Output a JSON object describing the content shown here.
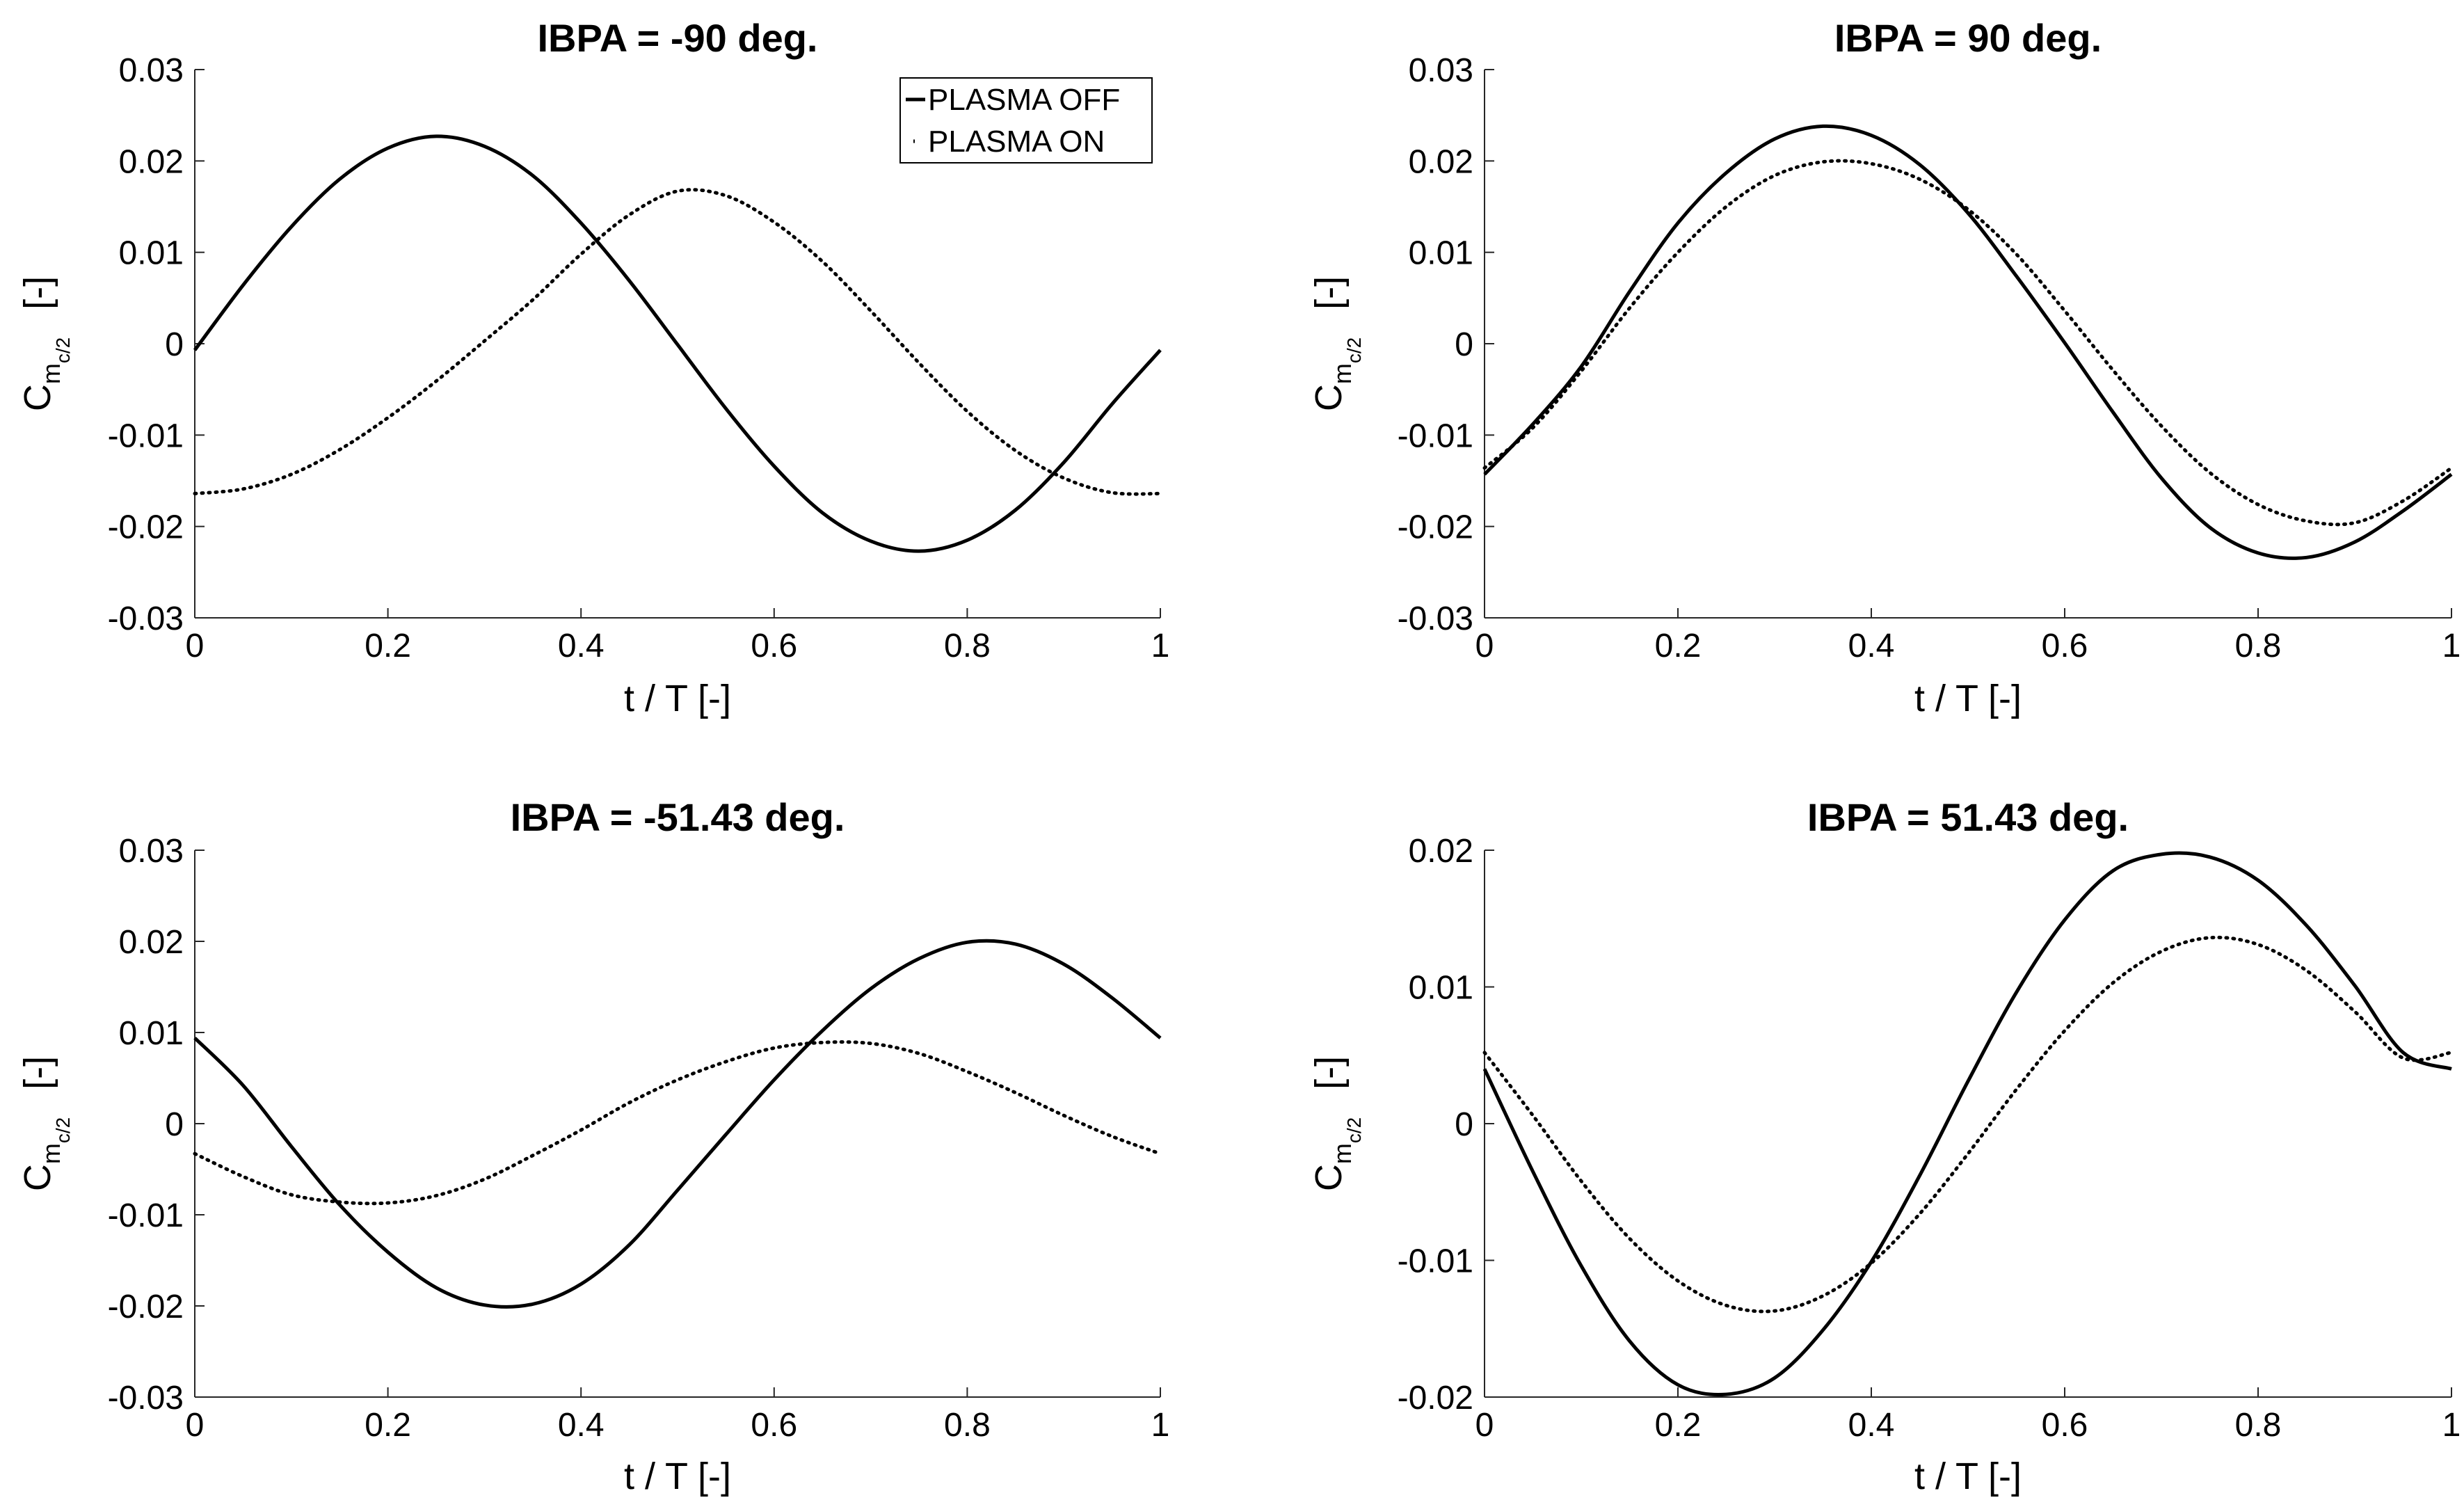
{
  "chart_data": [
    {
      "type": "line",
      "title": "IBPA = -90 deg.",
      "xlabel": "t / T  [-]",
      "ylabel_main": "C",
      "ylabel_sub": "m",
      "ylabel_subsub": "c/2",
      "ylabel_unit": "[-]",
      "xlim": [
        0,
        1
      ],
      "ylim": [
        -0.03,
        0.03
      ],
      "xticks": [
        0,
        0.2,
        0.4,
        0.6,
        0.8,
        1
      ],
      "xtick_labels": [
        "0",
        "0.2",
        "0.4",
        "0.6",
        "0.8",
        "1"
      ],
      "yticks": [
        -0.03,
        -0.02,
        -0.01,
        0,
        0.01,
        0.02,
        0.03
      ],
      "ytick_labels": [
        "-0.03",
        "-0.02",
        "-0.01",
        "0",
        "0.01",
        "0.02",
        "0.03"
      ],
      "grid": false,
      "legend_position": "top-right",
      "series": [
        {
          "name": "PLASMA OFF",
          "style": "solid",
          "x": [
            0,
            0.05,
            0.1,
            0.15,
            0.2,
            0.25,
            0.3,
            0.35,
            0.4,
            0.45,
            0.5,
            0.55,
            0.6,
            0.65,
            0.7,
            0.75,
            0.8,
            0.85,
            0.9,
            0.95,
            1
          ],
          "values": [
            -0.0007,
            0.0064,
            0.0128,
            0.018,
            0.0214,
            0.0227,
            0.0216,
            0.0184,
            0.0132,
            0.0069,
            -0.0001,
            -0.0071,
            -0.0134,
            -0.0185,
            -0.0216,
            -0.0227,
            -0.0215,
            -0.0182,
            -0.013,
            -0.0066,
            -0.0007
          ]
        },
        {
          "name": "PLASMA ON",
          "style": "dotted",
          "x": [
            0,
            0.05,
            0.1,
            0.15,
            0.2,
            0.25,
            0.3,
            0.35,
            0.4,
            0.45,
            0.5,
            0.55,
            0.6,
            0.65,
            0.7,
            0.75,
            0.8,
            0.85,
            0.9,
            0.95,
            1
          ],
          "values": [
            -0.0164,
            -0.0159,
            -0.0143,
            -0.0116,
            -0.0081,
            -0.0041,
            0.0003,
            0.0048,
            0.0098,
            0.0141,
            0.0167,
            0.0162,
            0.0133,
            0.009,
            0.0036,
            -0.0021,
            -0.0074,
            -0.0117,
            -0.0147,
            -0.0163,
            -0.0164
          ]
        }
      ]
    },
    {
      "type": "line",
      "title": "IBPA = 90 deg.",
      "xlabel": "t / T  [-]",
      "ylabel_main": "C",
      "ylabel_sub": "m",
      "ylabel_subsub": "c/2",
      "ylabel_unit": "[-]",
      "xlim": [
        0,
        1
      ],
      "ylim": [
        -0.03,
        0.03
      ],
      "xticks": [
        0,
        0.2,
        0.4,
        0.6,
        0.8,
        1
      ],
      "xtick_labels": [
        "0",
        "0.2",
        "0.4",
        "0.6",
        "0.8",
        "1"
      ],
      "yticks": [
        -0.03,
        -0.02,
        -0.01,
        0,
        0.01,
        0.02,
        0.03
      ],
      "ytick_labels": [
        "-0.03",
        "-0.02",
        "-0.01",
        "0",
        "0.01",
        "0.02",
        "0.03"
      ],
      "grid": false,
      "series": [
        {
          "name": "PLASMA OFF",
          "style": "solid",
          "x": [
            0,
            0.05,
            0.1,
            0.15,
            0.2,
            0.25,
            0.3,
            0.35,
            0.4,
            0.45,
            0.5,
            0.55,
            0.6,
            0.65,
            0.7,
            0.75,
            0.8,
            0.85,
            0.9,
            0.95,
            1
          ],
          "values": [
            -0.0143,
            -0.0088,
            -0.0025,
            0.0057,
            0.0132,
            0.0187,
            0.0224,
            0.0238,
            0.0228,
            0.0196,
            0.0143,
            0.0074,
            0.0001,
            -0.0075,
            -0.0147,
            -0.0201,
            -0.0229,
            -0.0234,
            -0.0217,
            -0.0183,
            -0.0143
          ]
        },
        {
          "name": "PLASMA ON",
          "style": "dotted",
          "x": [
            0,
            0.05,
            0.1,
            0.15,
            0.2,
            0.25,
            0.3,
            0.35,
            0.4,
            0.45,
            0.5,
            0.55,
            0.6,
            0.65,
            0.7,
            0.75,
            0.8,
            0.85,
            0.9,
            0.95,
            1
          ],
          "values": [
            -0.0136,
            -0.0092,
            -0.003,
            0.0039,
            0.01,
            0.015,
            0.0184,
            0.0199,
            0.0197,
            0.018,
            0.0147,
            0.0098,
            0.0036,
            -0.0029,
            -0.009,
            -0.0141,
            -0.0176,
            -0.0194,
            -0.0196,
            -0.0172,
            -0.0136
          ]
        }
      ]
    },
    {
      "type": "line",
      "title": "IBPA = -51.43 deg.",
      "xlabel": "t / T  [-]",
      "ylabel_main": "C",
      "ylabel_sub": "m",
      "ylabel_subsub": "c/2",
      "ylabel_unit": "[-]",
      "xlim": [
        0,
        1
      ],
      "ylim": [
        -0.03,
        0.03
      ],
      "xticks": [
        0,
        0.2,
        0.4,
        0.6,
        0.8,
        1
      ],
      "xtick_labels": [
        "0",
        "0.2",
        "0.4",
        "0.6",
        "0.8",
        "1"
      ],
      "yticks": [
        -0.03,
        -0.02,
        -0.01,
        0,
        0.01,
        0.02,
        0.03
      ],
      "ytick_labels": [
        "-0.03",
        "-0.02",
        "-0.01",
        "0",
        "0.01",
        "0.02",
        "0.03"
      ],
      "grid": false,
      "series": [
        {
          "name": "PLASMA OFF",
          "style": "solid",
          "x": [
            0,
            0.05,
            0.1,
            0.15,
            0.2,
            0.25,
            0.3,
            0.35,
            0.4,
            0.45,
            0.5,
            0.55,
            0.6,
            0.65,
            0.7,
            0.75,
            0.8,
            0.85,
            0.9,
            0.95,
            1
          ],
          "values": [
            0.0094,
            0.0042,
            -0.0025,
            -0.0089,
            -0.0141,
            -0.018,
            -0.0199,
            -0.0198,
            -0.0176,
            -0.0133,
            -0.0073,
            -0.0012,
            0.0048,
            0.0102,
            0.0148,
            0.0181,
            0.0199,
            0.0197,
            0.0175,
            0.0138,
            0.0094
          ]
        },
        {
          "name": "PLASMA ON",
          "style": "dotted",
          "x": [
            0,
            0.05,
            0.1,
            0.15,
            0.2,
            0.25,
            0.3,
            0.35,
            0.4,
            0.45,
            0.5,
            0.55,
            0.6,
            0.65,
            0.7,
            0.75,
            0.8,
            0.85,
            0.9,
            0.95,
            1
          ],
          "values": [
            -0.0033,
            -0.0058,
            -0.0078,
            -0.0086,
            -0.0087,
            -0.0079,
            -0.0061,
            -0.0035,
            -0.0007,
            0.0023,
            0.0048,
            0.0068,
            0.0083,
            0.0089,
            0.0088,
            0.0077,
            0.0057,
            0.0034,
            0.0009,
            -0.0014,
            -0.0033
          ]
        }
      ]
    },
    {
      "type": "line",
      "title": "IBPA = 51.43 deg.",
      "xlabel": "t / T  [-]",
      "ylabel_main": "C",
      "ylabel_sub": "m",
      "ylabel_subsub": "c/2",
      "ylabel_unit": "[-]",
      "xlim": [
        0,
        1
      ],
      "ylim": [
        -0.02,
        0.02
      ],
      "xticks": [
        0,
        0.2,
        0.4,
        0.6,
        0.8,
        1
      ],
      "xtick_labels": [
        "0",
        "0.2",
        "0.4",
        "0.6",
        "0.8",
        "1"
      ],
      "yticks": [
        -0.02,
        -0.01,
        0,
        0.01,
        0.02
      ],
      "ytick_labels": [
        "-0.02",
        "-0.01",
        "0",
        "0.01",
        "0.02"
      ],
      "grid": false,
      "series": [
        {
          "name": "PLASMA OFF",
          "style": "solid",
          "x": [
            0,
            0.05,
            0.1,
            0.15,
            0.2,
            0.25,
            0.3,
            0.35,
            0.4,
            0.45,
            0.5,
            0.55,
            0.6,
            0.65,
            0.7,
            0.75,
            0.8,
            0.85,
            0.9,
            0.95,
            1
          ],
          "values": [
            0.004,
            -0.0035,
            -0.0104,
            -0.0159,
            -0.0191,
            -0.0198,
            -0.0186,
            -0.0151,
            -0.0101,
            -0.0038,
            0.0031,
            0.0096,
            0.0149,
            0.0185,
            0.0197,
            0.0195,
            0.0178,
            0.0145,
            0.0101,
            0.0052,
            0.004
          ]
        },
        {
          "name": "PLASMA ON",
          "style": "dotted",
          "x": [
            0,
            0.05,
            0.1,
            0.15,
            0.2,
            0.25,
            0.3,
            0.35,
            0.4,
            0.45,
            0.5,
            0.55,
            0.6,
            0.65,
            0.7,
            0.75,
            0.8,
            0.85,
            0.9,
            0.95,
            1
          ],
          "values": [
            0.0052,
            0.0006,
            -0.0042,
            -0.0084,
            -0.0115,
            -0.0133,
            -0.0137,
            -0.0126,
            -0.0102,
            -0.0066,
            -0.0022,
            0.0025,
            0.0068,
            0.0103,
            0.0126,
            0.0136,
            0.0131,
            0.0112,
            0.0082,
            0.0048,
            0.0052
          ]
        }
      ]
    }
  ]
}
